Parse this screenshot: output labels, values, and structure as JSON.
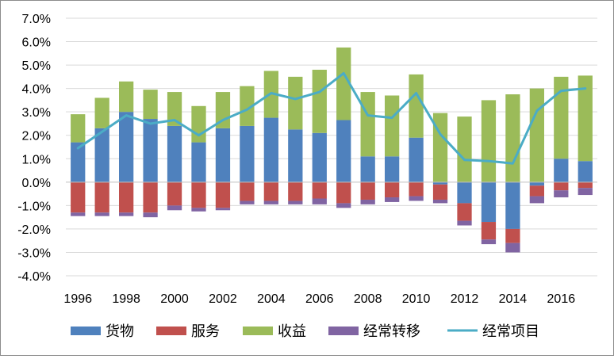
{
  "chart_data": {
    "type": "bar",
    "stacked": true,
    "title": "",
    "xlabel": "",
    "ylabel": "",
    "categories": [
      "1996",
      "1997",
      "1998",
      "1999",
      "2000",
      "2001",
      "2002",
      "2003",
      "2004",
      "2005",
      "2006",
      "2007",
      "2008",
      "2009",
      "2010",
      "2011",
      "2012",
      "2013",
      "2014",
      "2015",
      "2016",
      "2017"
    ],
    "x_tick_labels": [
      "1996",
      "1998",
      "2000",
      "2002",
      "2004",
      "2006",
      "2008",
      "2010",
      "2012",
      "2014",
      "2016"
    ],
    "ylim": [
      -4.0,
      7.0
    ],
    "y_ticks": [
      -4.0,
      -3.0,
      -2.0,
      -1.0,
      0.0,
      1.0,
      2.0,
      3.0,
      4.0,
      5.0,
      6.0,
      7.0
    ],
    "y_tick_labels": [
      "-4.0%",
      "-3.0%",
      "-2.0%",
      "-1.0%",
      "0.0%",
      "1.0%",
      "2.0%",
      "3.0%",
      "4.0%",
      "5.0%",
      "6.0%",
      "7.0%"
    ],
    "grid": "horizontal",
    "legend_position": "bottom",
    "series": [
      {
        "name": "货物",
        "kind": "bar",
        "color": "#4f81bd",
        "values": [
          1.7,
          2.3,
          3.0,
          2.7,
          2.4,
          1.7,
          2.3,
          2.4,
          2.75,
          2.25,
          2.1,
          2.65,
          1.1,
          1.1,
          1.9,
          -0.1,
          -0.9,
          -1.7,
          -2.0,
          -0.15,
          1.0,
          0.9
        ]
      },
      {
        "name": "服务",
        "kind": "bar",
        "color": "#c0504d",
        "values": [
          -1.3,
          -1.3,
          -1.3,
          -1.3,
          -1.0,
          -1.1,
          -1.1,
          -0.8,
          -0.8,
          -0.8,
          -0.7,
          -0.9,
          -0.75,
          -0.65,
          -0.6,
          -0.65,
          -0.75,
          -0.75,
          -0.6,
          -0.45,
          -0.35,
          -0.25
        ]
      },
      {
        "name": "收益",
        "kind": "bar",
        "color": "#9bbb59",
        "values": [
          1.2,
          1.3,
          1.3,
          1.25,
          1.45,
          1.55,
          1.55,
          1.7,
          2.0,
          2.25,
          2.7,
          3.1,
          2.75,
          2.6,
          2.7,
          2.95,
          2.8,
          3.5,
          3.75,
          4.0,
          3.5,
          3.65
        ]
      },
      {
        "name": "经常转移",
        "kind": "bar",
        "color": "#8064a2",
        "values": [
          -0.15,
          -0.15,
          -0.15,
          -0.2,
          -0.2,
          -0.15,
          -0.1,
          -0.15,
          -0.15,
          -0.15,
          -0.25,
          -0.2,
          -0.2,
          -0.2,
          -0.2,
          -0.15,
          -0.2,
          -0.2,
          -0.4,
          -0.3,
          -0.3,
          -0.3
        ]
      },
      {
        "name": "经常项目",
        "kind": "line",
        "color": "#4bacc6",
        "values": [
          1.45,
          2.15,
          2.85,
          2.5,
          2.65,
          2.0,
          2.65,
          3.1,
          3.8,
          3.55,
          3.85,
          4.65,
          2.85,
          2.75,
          3.8,
          2.05,
          0.95,
          0.9,
          0.8,
          3.05,
          3.9,
          4.0
        ]
      }
    ]
  }
}
